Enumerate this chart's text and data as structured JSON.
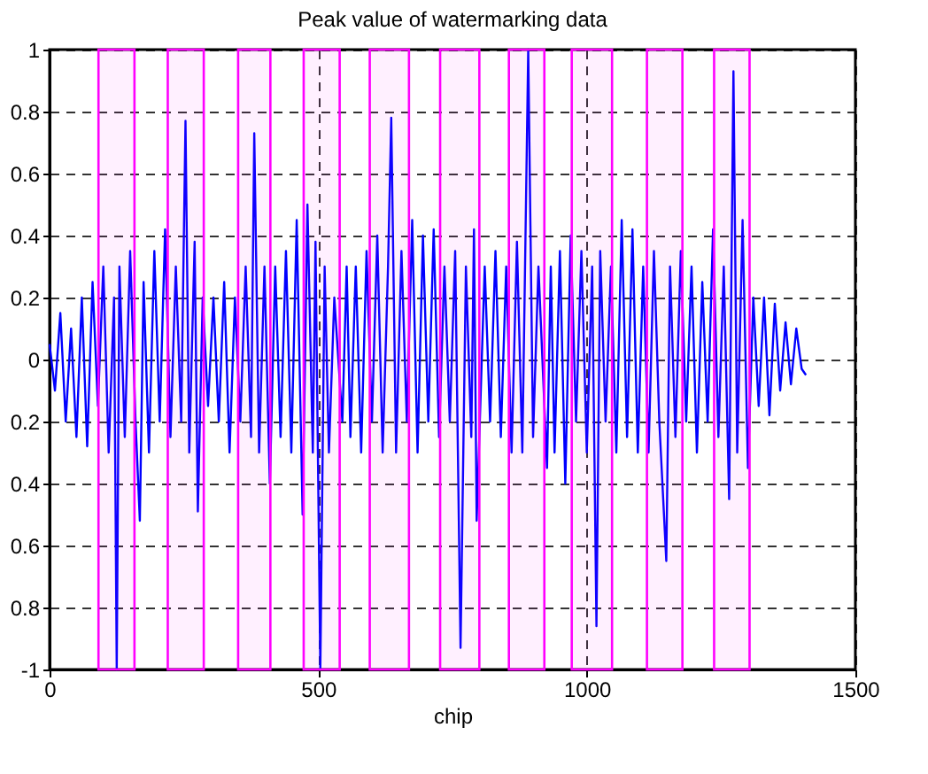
{
  "chart_data": {
    "type": "line",
    "title": "Peak value of watermarking data",
    "xlabel": "chip",
    "x": [
      0,
      10,
      20,
      30,
      40,
      50,
      60,
      70,
      80,
      90,
      100,
      110,
      120,
      125,
      130,
      140,
      150,
      160,
      168,
      175,
      185,
      195,
      205,
      215,
      225,
      235,
      245,
      253,
      260,
      270,
      276,
      285,
      295,
      305,
      315,
      325,
      335,
      345,
      355,
      365,
      375,
      381,
      390,
      400,
      410,
      420,
      430,
      440,
      450,
      460,
      471,
      480,
      490,
      495,
      504,
      512,
      520,
      530,
      545,
      553,
      560,
      570,
      580,
      590,
      600,
      610,
      620,
      630,
      636,
      645,
      655,
      665,
      675,
      685,
      695,
      705,
      715,
      725,
      735,
      745,
      755,
      765,
      775,
      785,
      790,
      795,
      810,
      820,
      830,
      840,
      850,
      860,
      870,
      880,
      891,
      900,
      910,
      926,
      933,
      940,
      950,
      960,
      970,
      980,
      990,
      1000,
      1010,
      1018,
      1025,
      1035,
      1045,
      1055,
      1065,
      1075,
      1085,
      1095,
      1105,
      1115,
      1125,
      1135,
      1148,
      1155,
      1165,
      1175,
      1185,
      1195,
      1205,
      1215,
      1225,
      1235,
      1245,
      1255,
      1265,
      1273,
      1280,
      1290,
      1300,
      1310,
      1320,
      1330,
      1340,
      1350,
      1360,
      1370,
      1380,
      1390,
      1400,
      1408
    ],
    "series": [
      {
        "color": "#0000ff",
        "values": [
          0.05,
          -0.1,
          0.15,
          -0.2,
          0.1,
          -0.25,
          0.2,
          -0.28,
          0.25,
          -0.15,
          0.3,
          -0.3,
          0.2,
          -1.0,
          0.3,
          -0.25,
          0.35,
          -0.2,
          -0.52,
          0.25,
          -0.3,
          0.35,
          -0.2,
          0.42,
          -0.25,
          0.3,
          -0.2,
          0.77,
          -0.3,
          0.38,
          -0.49,
          0.2,
          -0.15,
          0.2,
          -0.2,
          0.25,
          -0.3,
          0.2,
          -0.2,
          0.3,
          -0.25,
          0.73,
          -0.3,
          0.3,
          -0.4,
          0.3,
          -0.25,
          0.35,
          -0.3,
          0.45,
          -0.5,
          0.5,
          -0.3,
          0.38,
          -1.0,
          0.3,
          -0.3,
          0.2,
          -0.2,
          0.3,
          -0.25,
          0.3,
          -0.3,
          0.35,
          -0.2,
          0.4,
          -0.3,
          0.3,
          0.78,
          -0.3,
          0.35,
          -0.2,
          0.45,
          -0.3,
          0.4,
          -0.2,
          0.42,
          -0.25,
          0.3,
          -0.2,
          0.35,
          -0.93,
          0.3,
          -0.25,
          0.42,
          -0.52,
          0.3,
          -0.2,
          0.35,
          -0.25,
          0.3,
          -0.3,
          0.38,
          -0.3,
          1.0,
          -0.25,
          0.3,
          -0.35,
          0.3,
          -0.3,
          0.35,
          -0.4,
          0.4,
          -0.2,
          0.35,
          -0.3,
          0.3,
          -0.86,
          0.35,
          -0.2,
          0.3,
          -0.3,
          0.45,
          -0.25,
          0.42,
          -0.3,
          0.3,
          -0.3,
          0.35,
          -0.2,
          -0.65,
          0.3,
          -0.25,
          0.35,
          -0.2,
          0.3,
          -0.3,
          0.25,
          -0.2,
          0.42,
          -0.25,
          0.3,
          -0.45,
          0.93,
          -0.3,
          0.45,
          -0.35,
          0.2,
          -0.15,
          0.2,
          -0.18,
          0.18,
          -0.1,
          0.12,
          -0.08,
          0.1,
          -0.03,
          -0.05
        ]
      }
    ],
    "xlim": [
      0,
      1500
    ],
    "xticks": [
      0,
      500,
      1000,
      1500
    ],
    "ylim": [
      -1,
      1
    ],
    "yticks": [
      -1,
      {
        "value": -0.8,
        "label": "0.8"
      },
      {
        "value": -0.6,
        "label": "0.6"
      },
      {
        "value": -0.4,
        "label": "0.4"
      },
      {
        "value": -0.2,
        "label": "0.2"
      },
      0,
      0.2,
      0.4,
      0.6,
      0.8,
      1
    ],
    "grid": true,
    "line_style": "solid",
    "bands": [
      {
        "axis": "x",
        "from": 91,
        "to": 158,
        "color": "#ff00ff"
      },
      {
        "axis": "x",
        "from": 220,
        "to": 287,
        "color": "#ff00ff"
      },
      {
        "axis": "x",
        "from": 351,
        "to": 411,
        "color": "#ff00ff"
      },
      {
        "axis": "x",
        "from": 473,
        "to": 540,
        "color": "#ff00ff"
      },
      {
        "axis": "x",
        "from": 596,
        "to": 669,
        "color": "#ff00ff"
      },
      {
        "axis": "x",
        "from": 727,
        "to": 800,
        "color": "#ff00ff"
      },
      {
        "axis": "x",
        "from": 855,
        "to": 921,
        "color": "#ff00ff"
      },
      {
        "axis": "x",
        "from": 972,
        "to": 1047,
        "color": "#ff00ff"
      },
      {
        "axis": "x",
        "from": 1112,
        "to": 1178,
        "color": "#ff00ff"
      },
      {
        "axis": "x",
        "from": 1237,
        "to": 1303,
        "color": "#ff00ff"
      }
    ]
  }
}
